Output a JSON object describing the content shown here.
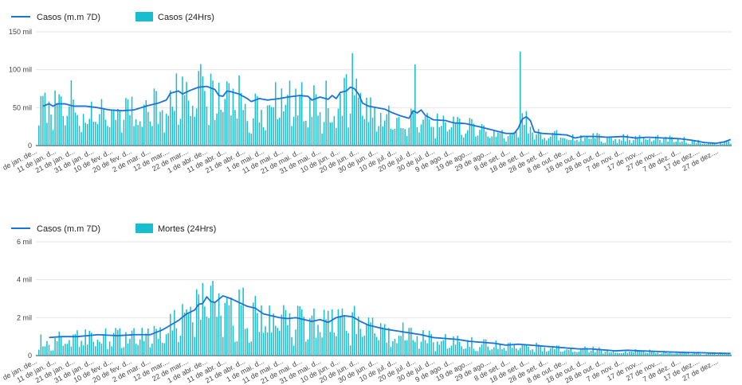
{
  "colors": {
    "line": "#1a73d9",
    "bar": "#17becf",
    "grid": "#e6e6e6",
    "axis": "#333333"
  },
  "chart_data": [
    {
      "type": "bar",
      "legend": [
        {
          "label": "Casos (m.m 7D)",
          "kind": "line"
        },
        {
          "label": "Casos (24Hrs)",
          "kind": "bar"
        }
      ],
      "yticks": [
        {
          "value": 0,
          "label": "0"
        },
        {
          "value": 50000,
          "label": "50 mil"
        },
        {
          "value": 100000,
          "label": "100 mil"
        },
        {
          "value": 150000,
          "label": "150 mil"
        }
      ],
      "ylim": [
        0,
        150000
      ],
      "xticks": [
        "de jan. de...",
        "11 de jan. d...",
        "21 de jan. d...",
        "31 de jan. d...",
        "10 de fev. d...",
        "20 de fev. d...",
        "2 de mar. d...",
        "12 de mar....",
        "22 de mar....",
        "1 de abr. de...",
        "11 de abr. d...",
        "21 de abr. d...",
        "1 de mai. d...",
        "11 de mai. d...",
        "21 de mai. d...",
        "31 de mai. d...",
        "10 de jun. d...",
        "20 de jun. d...",
        "30 de jun. d...",
        "10 de jul. d...",
        "20 de jul. d...",
        "30 de jul. d...",
        "9 de ago. d...",
        "19 de ago....",
        "29 de ago....",
        "8 de set. d...",
        "18 de set. d...",
        "28 de set. d...",
        "8 de out. de...",
        "18 de out. d...",
        "28 de out. d...",
        "7 de nov. d...",
        "17 de nov....",
        "27 de nov....",
        "7 de dez. d...",
        "17 de dez....",
        "27 de dez...."
      ],
      "moving_avg": [
        [
          3,
          52000
        ],
        [
          6,
          55000
        ],
        [
          8,
          52000
        ],
        [
          10,
          55000
        ],
        [
          14,
          55000
        ],
        [
          18,
          52000
        ],
        [
          24,
          52000
        ],
        [
          30,
          50000
        ],
        [
          36,
          47000
        ],
        [
          42,
          46000
        ],
        [
          48,
          47000
        ],
        [
          54,
          52000
        ],
        [
          60,
          56000
        ],
        [
          64,
          60000
        ],
        [
          66,
          69000
        ],
        [
          70,
          72000
        ],
        [
          72,
          68000
        ],
        [
          76,
          73000
        ],
        [
          80,
          77000
        ],
        [
          84,
          78000
        ],
        [
          88,
          74000
        ],
        [
          90,
          66000
        ],
        [
          92,
          65000
        ],
        [
          94,
          72000
        ],
        [
          96,
          71000
        ],
        [
          100,
          68000
        ],
        [
          104,
          62000
        ],
        [
          106,
          58000
        ],
        [
          110,
          62000
        ],
        [
          114,
          60000
        ],
        [
          120,
          62000
        ],
        [
          124,
          64000
        ],
        [
          130,
          66000
        ],
        [
          134,
          65000
        ],
        [
          136,
          60000
        ],
        [
          140,
          64000
        ],
        [
          144,
          61000
        ],
        [
          146,
          66000
        ],
        [
          148,
          62000
        ],
        [
          150,
          70000
        ],
        [
          153,
          72000
        ],
        [
          155,
          77000
        ],
        [
          157,
          75000
        ],
        [
          159,
          68000
        ],
        [
          161,
          56000
        ],
        [
          164,
          52000
        ],
        [
          168,
          50000
        ],
        [
          172,
          48000
        ],
        [
          176,
          43000
        ],
        [
          180,
          39000
        ],
        [
          184,
          36000
        ],
        [
          186,
          46000
        ],
        [
          188,
          43000
        ],
        [
          190,
          47000
        ],
        [
          192,
          40000
        ],
        [
          196,
          34000
        ],
        [
          202,
          33000
        ],
        [
          206,
          30000
        ],
        [
          212,
          29000
        ],
        [
          220,
          24000
        ],
        [
          226,
          20000
        ],
        [
          232,
          16000
        ],
        [
          236,
          16000
        ],
        [
          238,
          23000
        ],
        [
          240,
          35000
        ],
        [
          242,
          38000
        ],
        [
          244,
          33000
        ],
        [
          246,
          18000
        ],
        [
          250,
          16000
        ],
        [
          256,
          15000
        ],
        [
          262,
          14000
        ],
        [
          266,
          10000
        ],
        [
          270,
          12000
        ],
        [
          276,
          12000
        ],
        [
          282,
          11000
        ],
        [
          290,
          12000
        ],
        [
          296,
          10000
        ],
        [
          302,
          11000
        ],
        [
          310,
          10000
        ],
        [
          318,
          9000
        ],
        [
          324,
          7000
        ],
        [
          330,
          4000
        ],
        [
          336,
          3000
        ],
        [
          340,
          5000
        ],
        [
          343,
          8000
        ]
      ],
      "spikes": [
        [
          17,
          86000
        ],
        [
          156,
          122000
        ],
        [
          187,
          107000
        ],
        [
          239,
          124000
        ]
      ],
      "n_days": 344
    },
    {
      "type": "bar",
      "legend": [
        {
          "label": "Casos (m.m 7D)",
          "kind": "line"
        },
        {
          "label": "Mortes (24Hrs)",
          "kind": "bar"
        }
      ],
      "yticks": [
        {
          "value": 0,
          "label": "0"
        },
        {
          "value": 2000,
          "label": "2 mil"
        },
        {
          "value": 4000,
          "label": "4 mil"
        },
        {
          "value": 6000,
          "label": "6 mil"
        }
      ],
      "ylim": [
        0,
        6000
      ],
      "xticks": [
        "de jan. de...",
        "11 de jan. d...",
        "21 de jan. d...",
        "31 de jan. d...",
        "10 de fev. d...",
        "20 de fev. d...",
        "2 de mar. d...",
        "12 de mar....",
        "22 de mar....",
        "1 de abr. de...",
        "11 de abr. d...",
        "21 de abr. d...",
        "1 de mai. d...",
        "11 de mai. d...",
        "21 de mai. d...",
        "31 de mai. d...",
        "10 de jun. d...",
        "20 de jun. d...",
        "30 de jun. d...",
        "10 de jul. d...",
        "20 de jul. d...",
        "30 de jul. d...",
        "9 de ago. d...",
        "19 de ago....",
        "29 de ago....",
        "8 de set. d...",
        "18 de set. d...",
        "28 de set. d...",
        "8 de out. de...",
        "18 de out. d...",
        "28 de out. d...",
        "7 de nov. d...",
        "17 de nov....",
        "27 de nov....",
        "7 de dez. d...",
        "17 de dez....",
        "27 de dez...."
      ],
      "moving_avg": [
        [
          6,
          950
        ],
        [
          12,
          1000
        ],
        [
          20,
          1000
        ],
        [
          30,
          1100
        ],
        [
          40,
          1050
        ],
        [
          48,
          1100
        ],
        [
          56,
          1100
        ],
        [
          62,
          1350
        ],
        [
          66,
          1600
        ],
        [
          70,
          1850
        ],
        [
          74,
          2200
        ],
        [
          78,
          2400
        ],
        [
          80,
          2700
        ],
        [
          82,
          2750
        ],
        [
          84,
          3100
        ],
        [
          86,
          2850
        ],
        [
          88,
          2800
        ],
        [
          92,
          3150
        ],
        [
          96,
          3000
        ],
        [
          100,
          2800
        ],
        [
          104,
          2600
        ],
        [
          108,
          2500
        ],
        [
          112,
          2200
        ],
        [
          116,
          2100
        ],
        [
          120,
          2000
        ],
        [
          124,
          1950
        ],
        [
          128,
          2000
        ],
        [
          132,
          1900
        ],
        [
          136,
          1800
        ],
        [
          140,
          1900
        ],
        [
          144,
          1750
        ],
        [
          148,
          2000
        ],
        [
          152,
          2100
        ],
        [
          156,
          2050
        ],
        [
          160,
          1800
        ],
        [
          164,
          1600
        ],
        [
          168,
          1500
        ],
        [
          172,
          1400
        ],
        [
          178,
          1300
        ],
        [
          184,
          1200
        ],
        [
          190,
          1100
        ],
        [
          196,
          950
        ],
        [
          202,
          900
        ],
        [
          208,
          850
        ],
        [
          214,
          750
        ],
        [
          220,
          700
        ],
        [
          226,
          650
        ],
        [
          232,
          550
        ],
        [
          238,
          600
        ],
        [
          244,
          550
        ],
        [
          250,
          500
        ],
        [
          256,
          450
        ],
        [
          262,
          400
        ],
        [
          268,
          350
        ],
        [
          274,
          350
        ],
        [
          280,
          300
        ],
        [
          286,
          250
        ],
        [
          292,
          280
        ],
        [
          298,
          250
        ],
        [
          304,
          230
        ],
        [
          310,
          200
        ],
        [
          316,
          180
        ],
        [
          322,
          160
        ],
        [
          328,
          150
        ],
        [
          334,
          130
        ],
        [
          340,
          120
        ],
        [
          343,
          110
        ]
      ],
      "spikes": [],
      "n_days": 344
    }
  ]
}
